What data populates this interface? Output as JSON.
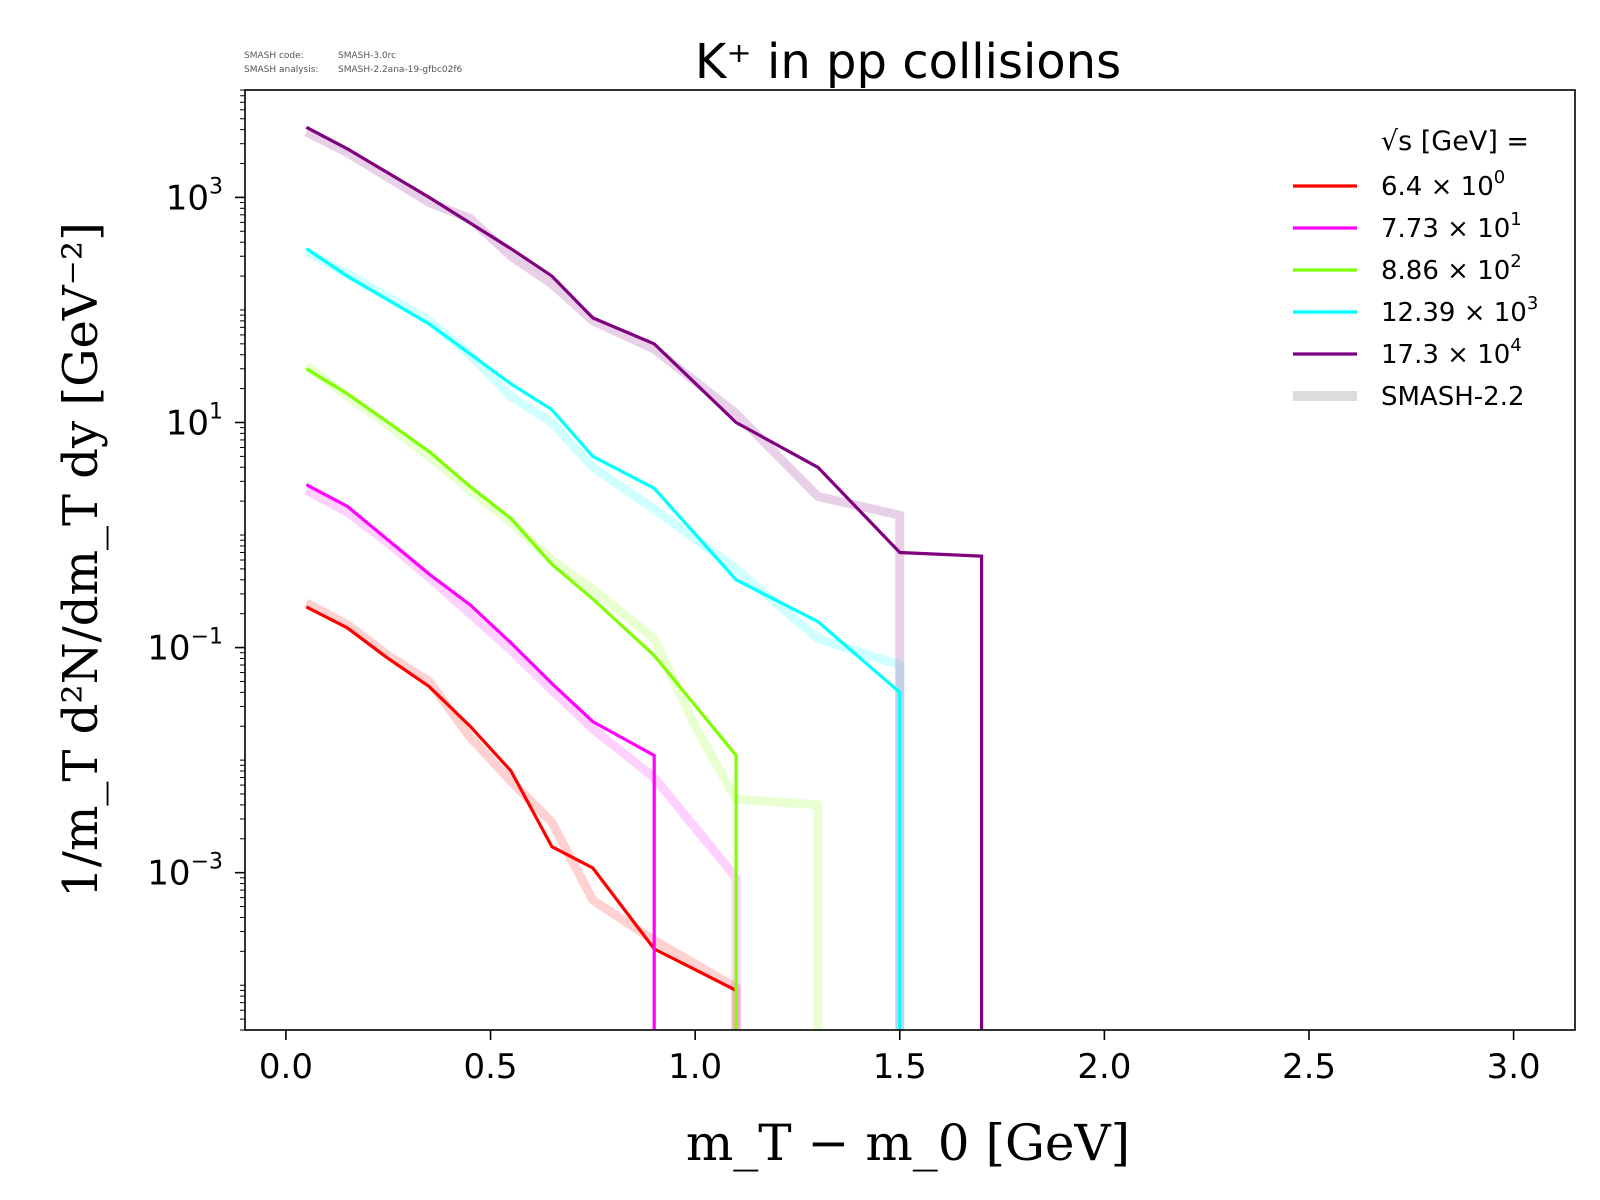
{
  "meta_line_1_label": "SMASH code:",
  "meta_line_1_value": "SMASH-3.0rc",
  "meta_line_2_label": "SMASH analysis:",
  "meta_line_2_value": "SMASH-2.2ana-19-gfbc02f6",
  "chart_data": {
    "type": "line",
    "title": "K⁺ in pp collisions",
    "xlabel": "m_T − m_0 [GeV]",
    "ylabel": "1/m_T d²N/dm_T dy [GeV⁻²]",
    "xlim": [
      -0.1,
      3.15
    ],
    "ylim": [
      4e-05,
      9000
    ],
    "y_scale": "log",
    "grid": false,
    "legend_position": "top-right",
    "legend_title": "√s [GeV] =",
    "x_ticks": [
      0.0,
      0.5,
      1.0,
      1.5,
      2.0,
      2.5,
      3.0
    ],
    "x_tick_labels": [
      "0.0",
      "0.5",
      "1.0",
      "1.5",
      "2.0",
      "2.5",
      "3.0"
    ],
    "y_ticks": [
      0.001,
      0.1,
      10,
      1000
    ],
    "y_tick_labels": [
      {
        "base": "10",
        "exp": "−3"
      },
      {
        "base": "10",
        "exp": "−1"
      },
      {
        "base": "10",
        "exp": "1"
      },
      {
        "base": "10",
        "exp": "3"
      }
    ],
    "series": [
      {
        "name": "6.4 × 10⁰",
        "label_mantissa": "6.4",
        "label_exp": "0",
        "color": "#ff0000",
        "x": [
          0.05,
          0.15,
          0.25,
          0.35,
          0.45,
          0.55,
          0.65,
          0.75,
          0.9,
          1.1
        ],
        "y": [
          0.23,
          0.15,
          0.08,
          0.045,
          0.02,
          0.008,
          0.0017,
          0.0011,
          0.00021,
          9e-05
        ]
      },
      {
        "name": "7.73 × 10¹",
        "label_mantissa": "7.73",
        "label_exp": "1",
        "color": "#ff00ff",
        "x": [
          0.05,
          0.15,
          0.25,
          0.35,
          0.45,
          0.55,
          0.65,
          0.75,
          0.9,
          0.9
        ],
        "y": [
          2.8,
          1.8,
          0.9,
          0.45,
          0.24,
          0.11,
          0.048,
          0.022,
          0.011,
          4e-05
        ]
      },
      {
        "name": "8.86 × 10²",
        "label_mantissa": "8.86",
        "label_exp": "2",
        "color": "#7fff00",
        "x": [
          0.05,
          0.15,
          0.25,
          0.35,
          0.45,
          0.55,
          0.65,
          0.75,
          0.9,
          1.1,
          1.1
        ],
        "y": [
          30,
          18,
          10,
          5.5,
          2.7,
          1.4,
          0.55,
          0.27,
          0.085,
          0.011,
          4e-05
        ]
      },
      {
        "name": "12.39 × 10³",
        "label_mantissa": "12.39",
        "label_exp": "3",
        "color": "#00ffff",
        "x": [
          0.05,
          0.15,
          0.35,
          0.55,
          0.65,
          0.75,
          0.9,
          1.1,
          1.3,
          1.5,
          1.5
        ],
        "y": [
          350,
          200,
          75,
          22,
          13,
          5,
          2.6,
          0.4,
          0.17,
          0.04,
          4e-05
        ]
      },
      {
        "name": "17.3 × 10⁴",
        "label_mantissa": "17.3",
        "label_exp": "4",
        "color": "#800080",
        "x": [
          0.05,
          0.15,
          0.35,
          0.55,
          0.65,
          0.75,
          0.9,
          1.1,
          1.3,
          1.5,
          1.7,
          1.7
        ],
        "y": [
          4200,
          2700,
          1000,
          350,
          200,
          85,
          50,
          10,
          4,
          0.7,
          0.65,
          4e-05
        ]
      }
    ],
    "reference": {
      "name": "SMASH-2.2",
      "color": "#dcdcdc",
      "curves": [
        {
          "color": "#ff0000",
          "x": [
            0.05,
            0.15,
            0.25,
            0.35,
            0.45,
            0.55,
            0.65,
            0.75,
            0.9,
            1.1,
            1.1
          ],
          "y": [
            0.25,
            0.16,
            0.085,
            0.05,
            0.016,
            0.0065,
            0.0028,
            0.00057,
            0.00025,
            9.5e-05,
            4e-05
          ]
        },
        {
          "color": "#ff00ff",
          "x": [
            0.05,
            0.15,
            0.25,
            0.35,
            0.45,
            0.55,
            0.65,
            0.75,
            0.9,
            1.1,
            1.1
          ],
          "y": [
            2.5,
            1.6,
            0.85,
            0.42,
            0.2,
            0.095,
            0.042,
            0.019,
            0.007,
            0.0009,
            4e-05
          ]
        },
        {
          "color": "#7fff00",
          "x": [
            0.05,
            0.15,
            0.25,
            0.35,
            0.45,
            0.55,
            0.65,
            0.75,
            0.9,
            1.0,
            1.1,
            1.3,
            1.3
          ],
          "y": [
            32,
            17,
            9.5,
            5,
            2.5,
            1.3,
            0.6,
            0.33,
            0.12,
            0.02,
            0.0045,
            0.004,
            4e-05
          ]
        },
        {
          "color": "#00ffff",
          "x": [
            0.05,
            0.15,
            0.35,
            0.45,
            0.55,
            0.65,
            0.75,
            0.9,
            1.1,
            1.3,
            1.5,
            1.5
          ],
          "y": [
            330,
            210,
            80,
            40,
            17,
            10,
            4,
            1.7,
            0.5,
            0.12,
            0.07,
            4e-05
          ]
        },
        {
          "color": "#800080",
          "x": [
            0.05,
            0.15,
            0.35,
            0.45,
            0.55,
            0.65,
            0.75,
            0.9,
            1.1,
            1.3,
            1.5,
            1.5
          ],
          "y": [
            3800,
            2500,
            900,
            650,
            300,
            170,
            80,
            45,
            12,
            2.2,
            1.5,
            4e-05
          ]
        }
      ]
    }
  }
}
